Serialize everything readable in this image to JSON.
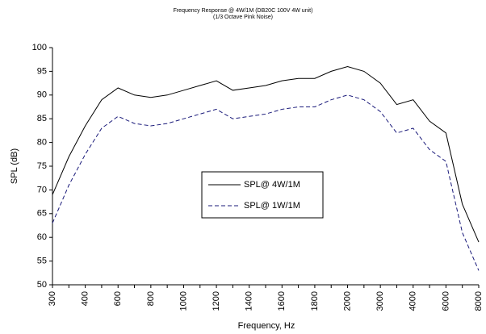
{
  "chart_data": {
    "type": "line",
    "title": "Frequency Response @ 4W/1M (DB20C 100V 4W unit)",
    "subtitle": "(1/3 Octave Pink Noise)",
    "x_label": "Frequency, Hz",
    "y_label": "SPL (dB)",
    "categories": [
      "300",
      null,
      "400",
      null,
      "600",
      null,
      "800",
      null,
      "1000",
      null,
      "1200",
      null,
      "1400",
      null,
      "1600",
      null,
      "1800",
      null,
      "2000",
      null,
      "3000",
      null,
      "4000",
      null,
      "6000",
      null,
      "8000"
    ],
    "series": [
      {
        "name": "SPL@ 4W/1M",
        "color": "#000000",
        "dash": false,
        "values": [
          69,
          77,
          83.5,
          89,
          91.5,
          90,
          89.5,
          90,
          91,
          92,
          93,
          91,
          91.5,
          92,
          93,
          93.5,
          93.5,
          95,
          96,
          95,
          92.5,
          88,
          89,
          84.5,
          82,
          67,
          59
        ]
      },
      {
        "name": "SPL@ 1W/1M",
        "color": "#1a1a7a",
        "dash": true,
        "values": [
          63,
          71,
          77.5,
          83,
          85.5,
          84,
          83.5,
          84,
          85,
          86,
          87,
          85,
          85.5,
          86,
          87,
          87.5,
          87.5,
          89,
          90,
          89,
          86.5,
          82,
          83,
          78.5,
          76,
          61,
          53
        ]
      }
    ],
    "ylim": [
      50,
      100
    ],
    "yticks": [
      50,
      55,
      60,
      65,
      70,
      75,
      80,
      85,
      90,
      95,
      100
    ],
    "grid": false
  }
}
